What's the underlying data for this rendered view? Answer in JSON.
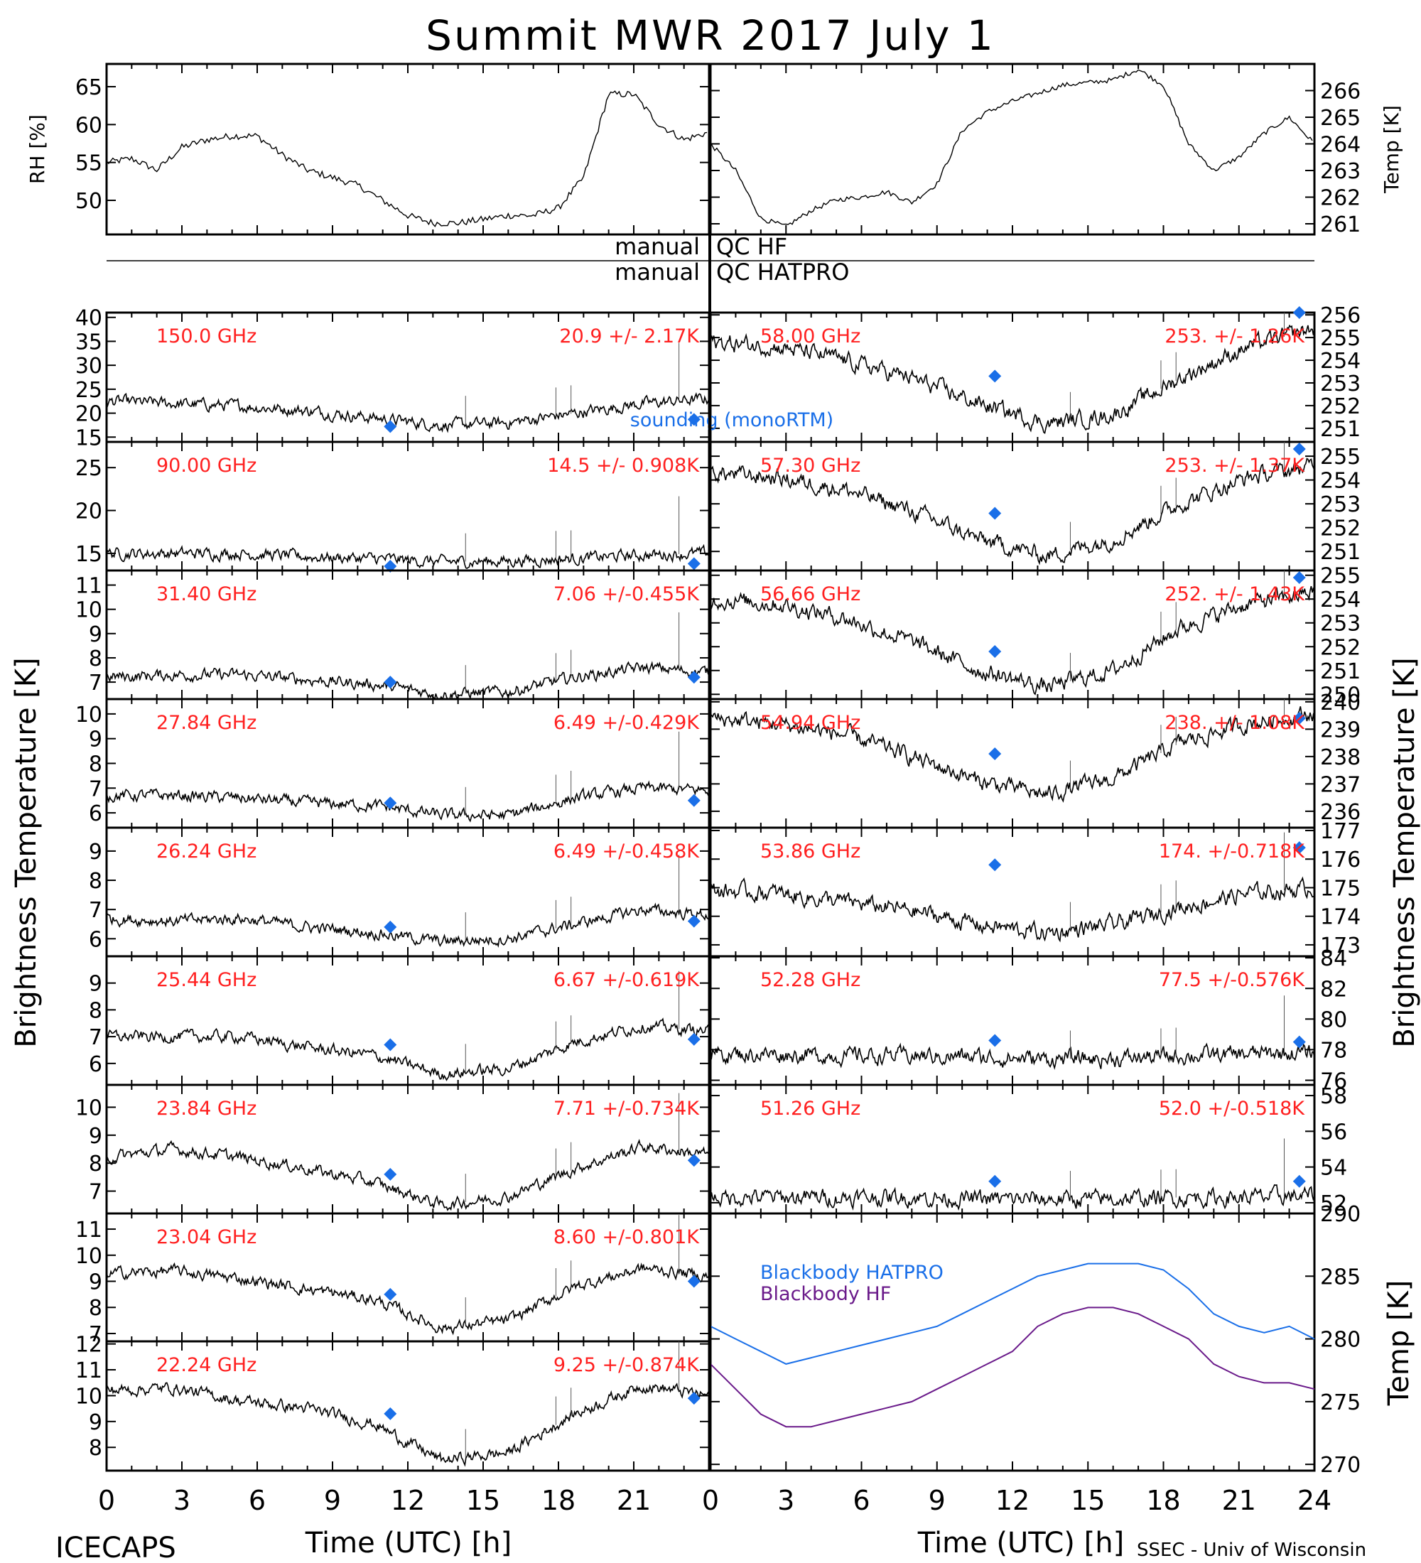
{
  "title": "Summit MWR 2017 July  1",
  "footer": {
    "left": "ICECAPS",
    "right": "SSEC - Univ of Wisconsin",
    "xlabel_left": "Time (UTC) [h]",
    "xlabel_right": "Time (UTC) [h]"
  },
  "colors": {
    "annotation": "#ff2020",
    "sounding": "#1a6fe8",
    "hatpro": "#1a6fe8",
    "hf": "#6a1a8a",
    "data": "#000000"
  },
  "qc": {
    "row1_left": "manual",
    "row1_right": "QC HF",
    "row2_left": "manual",
    "row2_right": "QC HATPRO"
  },
  "left_axis_label": "Brightness Temperature [K]",
  "right_axis_label": "Brightness Temperature [K]",
  "legend": {
    "sounding": "sounding (monoRTM)",
    "bb_hatpro": "Blackbody HATPRO",
    "bb_hf": "Blackbody HF"
  },
  "chart_data": [
    {
      "id": "rh",
      "type": "line",
      "ylabel": "RH [%]",
      "xlim": [
        0,
        24
      ],
      "ylim": [
        45.5,
        68
      ],
      "yticks": [
        50,
        55,
        60,
        65
      ],
      "series": [
        {
          "x": [
            0,
            1,
            2,
            3,
            4,
            5,
            6,
            7,
            8,
            9,
            10,
            11,
            12,
            13,
            14,
            15,
            16,
            17,
            18,
            19,
            20,
            21,
            22,
            23,
            24
          ],
          "values": [
            55,
            55.5,
            54,
            57,
            58,
            58.5,
            58.5,
            56,
            54,
            53,
            52,
            50,
            48,
            47,
            47,
            47.5,
            48,
            48,
            49,
            53,
            64,
            64,
            60,
            58,
            59
          ]
        }
      ]
    },
    {
      "id": "temp",
      "type": "line",
      "ylabel": "Temp [K]",
      "xlim": [
        0,
        24
      ],
      "ylim": [
        260.6,
        267
      ],
      "yticks": [
        261,
        262,
        263,
        264,
        265,
        266
      ],
      "series": [
        {
          "x": [
            0,
            1,
            2,
            3,
            4,
            5,
            6,
            7,
            8,
            9,
            10,
            11,
            12,
            13,
            14,
            15,
            16,
            17,
            18,
            19,
            20,
            21,
            22,
            23,
            24
          ],
          "values": [
            264,
            263,
            261.2,
            260.9,
            261.5,
            261.9,
            262,
            262.2,
            261.8,
            262.5,
            264.5,
            265.2,
            265.6,
            265.9,
            266.2,
            266.3,
            266.4,
            266.8,
            266.2,
            264,
            263,
            263.5,
            264.4,
            265,
            264
          ]
        }
      ]
    },
    {
      "id": "f150",
      "type": "line",
      "label": "150.0 GHz",
      "stats": "20.9 +/-  2.17K",
      "ylim": [
        14,
        41
      ],
      "yticks": [
        15,
        20,
        25,
        30,
        35,
        40
      ],
      "keypoints": [
        22.5,
        22,
        21.5,
        20.5,
        19,
        17.5,
        18,
        20,
        22,
        23
      ],
      "sounding": [
        [
          11.3,
          17.2
        ],
        [
          23.4,
          18.7
        ]
      ]
    },
    {
      "id": "f90",
      "type": "line",
      "label": "90.00 GHz",
      "stats": "14.5 +/- 0.908K",
      "ylim": [
        13,
        28
      ],
      "yticks": [
        15,
        20,
        25
      ],
      "keypoints": [
        15,
        15,
        15,
        14.6,
        14.4,
        14,
        14.1,
        14.4,
        14.8,
        15
      ],
      "sounding": [
        [
          11.3,
          13.5
        ],
        [
          23.4,
          13.8
        ]
      ]
    },
    {
      "id": "f3140",
      "type": "line",
      "label": "31.40 GHz",
      "stats": "7.06 +/-0.455K",
      "ylim": [
        6.3,
        11.6
      ],
      "yticks": [
        7,
        8,
        9,
        10,
        11
      ],
      "keypoints": [
        7.2,
        7.3,
        7.3,
        7.1,
        6.9,
        6.5,
        6.6,
        7.2,
        7.6,
        7.4
      ],
      "sounding": [
        [
          11.3,
          7.0
        ],
        [
          23.4,
          7.2
        ]
      ]
    },
    {
      "id": "f2784",
      "type": "line",
      "label": "27.84 GHz",
      "stats": "6.49 +/-0.429K",
      "ylim": [
        5.4,
        10.6
      ],
      "yticks": [
        6,
        7,
        8,
        9,
        10
      ],
      "keypoints": [
        6.7,
        6.7,
        6.6,
        6.4,
        6.3,
        5.9,
        5.9,
        6.6,
        7,
        6.9
      ],
      "sounding": [
        [
          11.3,
          6.4
        ],
        [
          23.4,
          6.5
        ]
      ]
    },
    {
      "id": "f2624",
      "type": "line",
      "label": "26.24 GHz",
      "stats": "6.49 +/-0.458K",
      "ylim": [
        5.4,
        9.8
      ],
      "yticks": [
        6,
        7,
        8,
        9
      ],
      "keypoints": [
        6.7,
        6.6,
        6.7,
        6.4,
        6.2,
        5.9,
        6,
        6.5,
        7,
        6.8
      ],
      "sounding": [
        [
          11.3,
          6.4
        ],
        [
          23.4,
          6.6
        ]
      ]
    },
    {
      "id": "f2544",
      "type": "line",
      "label": "25.44 GHz",
      "stats": "6.67 +/-0.619K",
      "ylim": [
        5.2,
        10
      ],
      "yticks": [
        6,
        7,
        8,
        9
      ],
      "keypoints": [
        7,
        7,
        7,
        6.6,
        6.3,
        5.6,
        5.8,
        6.8,
        7.4,
        7.2
      ],
      "sounding": [
        [
          11.3,
          6.7
        ],
        [
          23.4,
          6.9
        ]
      ]
    },
    {
      "id": "f2384",
      "type": "line",
      "label": "23.84 GHz",
      "stats": "7.71 +/-0.734K",
      "ylim": [
        6.2,
        10.8
      ],
      "yticks": [
        7,
        8,
        9,
        10
      ],
      "keypoints": [
        8.2,
        8.5,
        8.2,
        7.8,
        7.3,
        6.5,
        6.8,
        7.8,
        8.6,
        8.3
      ],
      "sounding": [
        [
          11.3,
          7.6
        ],
        [
          23.4,
          8.1
        ]
      ]
    },
    {
      "id": "f2304",
      "type": "line",
      "label": "23.04 GHz",
      "stats": "8.60 +/-0.801K",
      "ylim": [
        6.7,
        11.6
      ],
      "yticks": [
        7,
        8,
        9,
        10,
        11
      ],
      "keypoints": [
        9.3,
        9.4,
        9.1,
        8.7,
        8.3,
        7.2,
        7.5,
        8.8,
        9.5,
        9.2
      ],
      "sounding": [
        [
          11.3,
          8.5
        ],
        [
          23.4,
          9.0
        ]
      ]
    },
    {
      "id": "f2224",
      "type": "line",
      "label": "22.24 GHz",
      "stats": "9.25 +/-0.874K",
      "ylim": [
        7.1,
        12.1
      ],
      "yticks": [
        8,
        9,
        10,
        11,
        12
      ],
      "keypoints": [
        10.2,
        10.3,
        9.8,
        9.5,
        8.9,
        7.5,
        7.8,
        9.3,
        10.4,
        10
      ],
      "sounding": [
        [
          11.3,
          9.3
        ],
        [
          23.4,
          9.9
        ]
      ]
    },
    {
      "id": "f5800",
      "type": "line",
      "label": "58.00 GHz",
      "stats": "253. +/- 1.26K",
      "ylim": [
        250.4,
        256.1
      ],
      "yticks": [
        251,
        252,
        253,
        254,
        255,
        256
      ],
      "keypoints": [
        254.8,
        254.6,
        254,
        253.2,
        252.1,
        251.2,
        251.6,
        253.2,
        254.6,
        255.4
      ],
      "sounding": [
        [
          11.3,
          253.3
        ],
        [
          23.4,
          256.1
        ]
      ]
    },
    {
      "id": "f5730",
      "type": "line",
      "label": "57.30 GHz",
      "stats": "253. +/- 1.37K",
      "ylim": [
        250.2,
        255.6
      ],
      "yticks": [
        251,
        252,
        253,
        254,
        255
      ],
      "keypoints": [
        254.3,
        254.1,
        253.6,
        252.7,
        251.5,
        250.8,
        251.5,
        253,
        254.1,
        254.6
      ],
      "sounding": [
        [
          11.3,
          252.6
        ],
        [
          23.4,
          255.3
        ]
      ]
    },
    {
      "id": "f5666",
      "type": "line",
      "label": "56.66 GHz",
      "stats": "252. +/- 1.43K",
      "ylim": [
        249.8,
        255.2
      ],
      "yticks": [
        250,
        251,
        252,
        253,
        254,
        255
      ],
      "keypoints": [
        254,
        253.8,
        253.2,
        252.2,
        251,
        250.3,
        251,
        252.8,
        253.8,
        254.3
      ],
      "sounding": [
        [
          11.3,
          251.8
        ],
        [
          23.4,
          254.9
        ]
      ]
    },
    {
      "id": "f5494",
      "type": "line",
      "label": "54.94 GHz",
      "stats": "238. +/- 1.08K",
      "ylim": [
        235.4,
        240.1
      ],
      "yticks": [
        236,
        237,
        238,
        239,
        240
      ],
      "keypoints": [
        239.4,
        239.2,
        238.8,
        238,
        237.1,
        236.6,
        237.2,
        238.5,
        239.2,
        239.6
      ],
      "sounding": [
        [
          11.3,
          238.1
        ],
        [
          23.4,
          239.4
        ]
      ]
    },
    {
      "id": "f5386",
      "type": "line",
      "label": "53.86 GHz",
      "stats": "174. +/-0.718K",
      "ylim": [
        172.6,
        177.1
      ],
      "yticks": [
        173,
        174,
        175,
        176,
        177
      ],
      "keypoints": [
        174.9,
        174.8,
        174.5,
        174.2,
        173.7,
        173.4,
        173.7,
        174.3,
        174.8,
        175
      ],
      "sounding": [
        [
          11.3,
          175.8
        ],
        [
          23.4,
          176.4
        ]
      ]
    },
    {
      "id": "f5228",
      "type": "line",
      "label": "52.28 GHz",
      "stats": "77.5 +/-0.576K",
      "ylim": [
        75.7,
        84.1
      ],
      "yticks": [
        76,
        78,
        80,
        82,
        84
      ],
      "keypoints": [
        77.7,
        77.7,
        77.6,
        77.6,
        77.5,
        77.4,
        77.4,
        77.6,
        77.7,
        77.8
      ],
      "sounding": [
        [
          11.3,
          78.6
        ],
        [
          23.4,
          78.5
        ]
      ]
    },
    {
      "id": "f5126",
      "type": "line",
      "label": "51.26 GHz",
      "stats": "52.0 +/-0.518K",
      "ylim": [
        51.4,
        58.6
      ],
      "yticks": [
        52,
        54,
        56,
        58
      ],
      "keypoints": [
        52.3,
        52.3,
        52.3,
        52.3,
        52.2,
        52.2,
        52.2,
        52.3,
        52.3,
        52.4
      ],
      "sounding": [
        [
          11.3,
          53.2
        ],
        [
          23.4,
          53.2
        ]
      ]
    },
    {
      "id": "blackbody",
      "type": "line",
      "ylabel": "Temp [K]",
      "xlim": [
        0,
        24
      ],
      "ylim": [
        269.5,
        290
      ],
      "yticks": [
        270,
        275,
        280,
        285,
        290
      ],
      "series": [
        {
          "name": "Blackbody HATPRO",
          "x": [
            0,
            1,
            2,
            3,
            4,
            5,
            6,
            7,
            8,
            9,
            10,
            11,
            12,
            13,
            14,
            15,
            16,
            17,
            18,
            19,
            20,
            21,
            22,
            23,
            24
          ],
          "values": [
            281,
            280,
            279,
            278,
            278.5,
            279,
            279.5,
            280,
            280.5,
            281,
            282,
            283,
            284,
            285,
            285.5,
            286,
            286,
            286,
            285.5,
            284,
            282,
            281,
            280.5,
            281,
            280
          ]
        },
        {
          "name": "Blackbody HF",
          "x": [
            0,
            1,
            2,
            3,
            4,
            5,
            6,
            7,
            8,
            9,
            10,
            11,
            12,
            13,
            14,
            15,
            16,
            17,
            18,
            19,
            20,
            21,
            22,
            23,
            24
          ],
          "values": [
            278,
            276,
            274,
            273,
            273,
            273.5,
            274,
            274.5,
            275,
            276,
            277,
            278,
            279,
            281,
            282,
            282.5,
            282.5,
            282,
            281,
            280,
            278,
            277,
            276.5,
            276.5,
            276
          ]
        }
      ]
    }
  ],
  "xticks": [
    0,
    3,
    6,
    9,
    12,
    15,
    18,
    21
  ],
  "xticks_right": [
    0,
    3,
    6,
    9,
    12,
    15,
    18,
    21,
    24
  ]
}
